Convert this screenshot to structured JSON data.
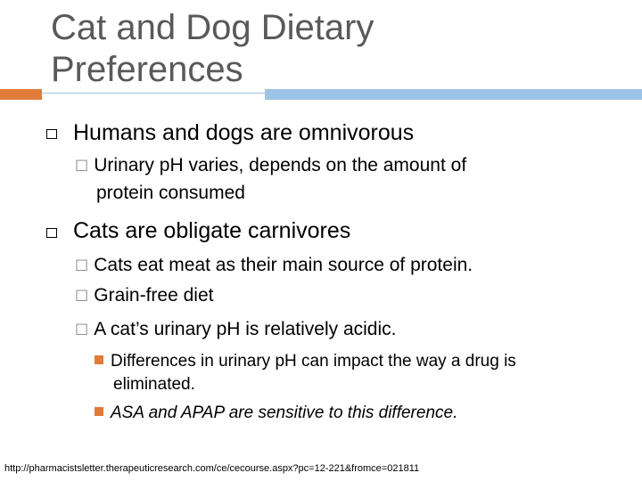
{
  "colors": {
    "title": "#595959",
    "accent_orange": "#E07B39",
    "accent_blue": "#9DC3E6",
    "bullet_orange": "#E07B39",
    "sub_bullet_gray": "#808080"
  },
  "slide": {
    "title_line1": "Cat and Dog Dietary",
    "title_line2": "Preferences",
    "bullet1": "Humans and dogs are omnivorous",
    "bullet1_sub1_line1": "Urinary pH varies, depends on the amount of",
    "bullet1_sub1_line2": "protein consumed",
    "bullet2": "Cats are obligate carnivores",
    "bullet2_sub1": "Cats eat meat as their main source of protein.",
    "bullet2_sub2": "Grain-free diet",
    "bullet2_sub3": "A cat’s urinary pH is relatively acidic.",
    "bullet2_sub3_item1_line1": "Differences in urinary pH can impact the way a drug is",
    "bullet2_sub3_item1_line2": "eliminated.",
    "bullet2_sub3_item2": "ASA and APAP are sensitive to this difference.",
    "sub_bullet_mark": "☐",
    "footer_url": "http://pharmacistsletter.therapeuticresearch.com/ce/cecourse.aspx?pc=12-221&fromce=021811"
  }
}
